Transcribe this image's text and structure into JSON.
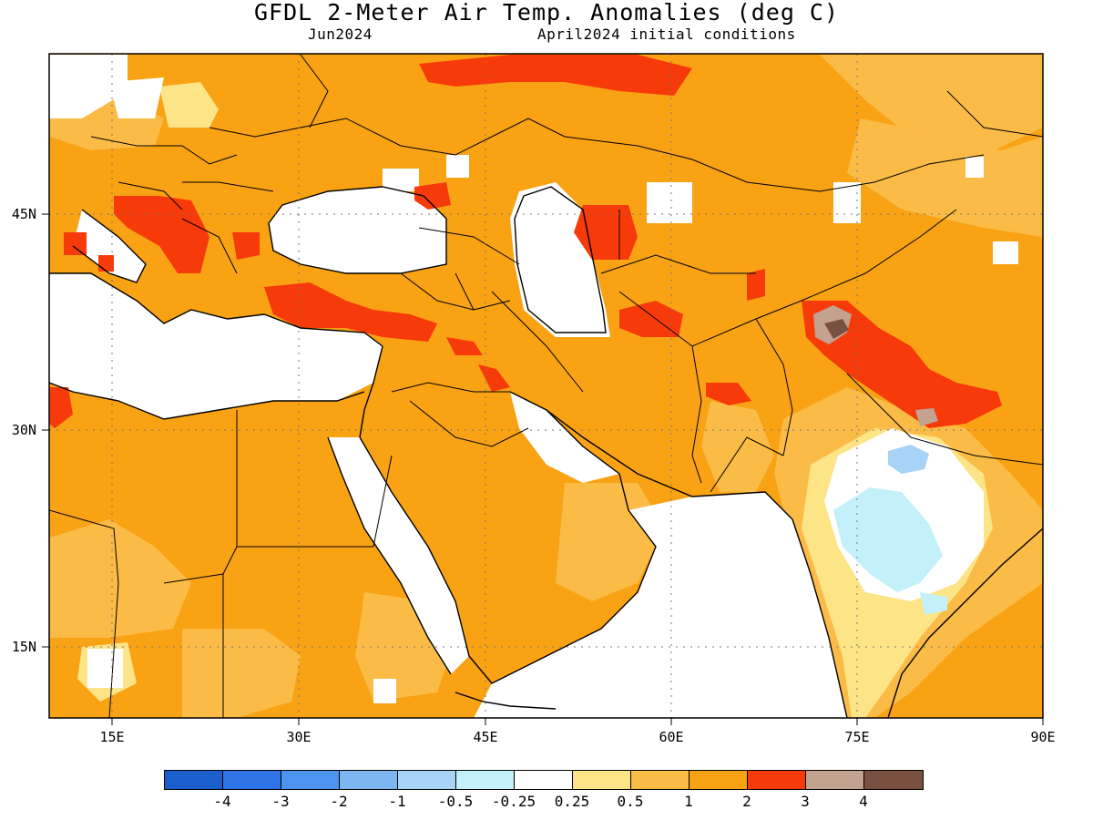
{
  "title": "GFDL 2-Meter Air Temp. Anomalies (deg C)",
  "valid_month": "Jun2024",
  "init_conditions": "April2024 initial conditions",
  "map": {
    "lon_range": [
      10,
      90
    ],
    "lat_range": [
      10,
      56.5
    ],
    "lon_labels": [
      "15E",
      "30E",
      "45E",
      "60E",
      "75E",
      "90E"
    ],
    "lon_values": [
      15,
      30,
      45,
      60,
      75,
      90
    ],
    "lat_labels": [
      "15N",
      "30N",
      "45N"
    ],
    "lat_values": [
      15,
      30,
      45
    ],
    "gridlines": "dotted"
  },
  "legend": {
    "colors": [
      "#1a5fcc",
      "#2e74e6",
      "#4c94f0",
      "#7eb6f2",
      "#a6d3f6",
      "#c4f0fa",
      "#ffffff",
      "#fde487",
      "#fbbb47",
      "#f8a214",
      "#f73a0a",
      "#c4a290",
      "#7a5040"
    ],
    "labels": [
      "-4",
      "-3",
      "-2",
      "-1",
      "-0.5",
      "-0.25",
      "0.25",
      "0.5",
      "1",
      "2",
      "3",
      "4"
    ]
  },
  "anomaly_regions": [
    {
      "category": "1 to 2",
      "color": "#f8a214",
      "area": "widespread background over Europe, North Africa, Middle East, Central Asia"
    },
    {
      "category": "2 to 3",
      "color": "#f73a0a",
      "area": "Balkans, Anatolia, northern Iran, Karakoram, Himalaya, southern Russia"
    },
    {
      "category": "3 to 4",
      "color": "#c4a290",
      "area": "Karakoram / western Himalaya"
    },
    {
      "category": "0.5 to 1",
      "color": "#fbbb47",
      "area": "northern India, Tibet, East Africa, southern Arabia"
    },
    {
      "category": "0.25 to 0.5",
      "color": "#fde487",
      "area": "central India, Balkans north"
    },
    {
      "category": "-0.25 to 0.25",
      "color": "#ffffff",
      "area": "seas, eastern Mediterranean, central India"
    },
    {
      "category": "-0.5 to -0.25",
      "color": "#c4f0fa",
      "area": "central India"
    },
    {
      "category": "-1 to -0.5",
      "color": "#a6d3f6",
      "area": "northern central India"
    }
  ]
}
